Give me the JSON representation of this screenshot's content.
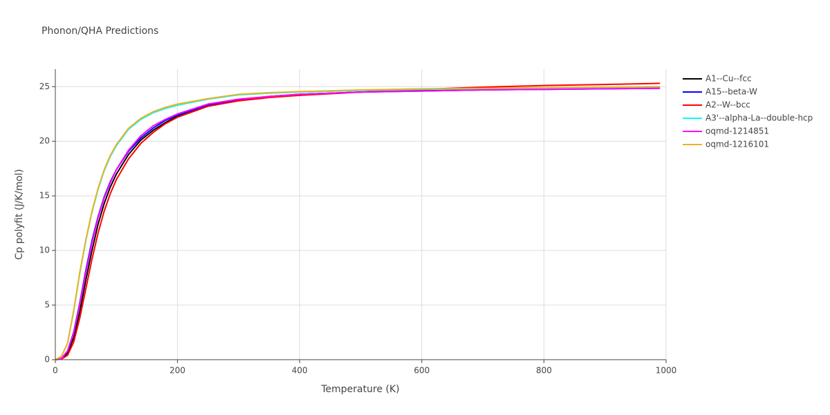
{
  "chart_data": {
    "type": "line",
    "title": "Phonon/QHA Predictions",
    "x_label": "Temperature (K)",
    "y_label": "Cp polyfit (J/K/mol)",
    "xlim": [
      0,
      1000
    ],
    "ylim": [
      0,
      26.6
    ],
    "xticks": [
      0,
      200,
      400,
      600,
      800,
      1000
    ],
    "yticks": [
      0,
      5,
      10,
      15,
      20,
      25
    ],
    "grid": true,
    "legend": "right",
    "x": [
      0,
      10,
      20,
      30,
      40,
      50,
      60,
      70,
      80,
      90,
      100,
      120,
      140,
      160,
      180,
      200,
      250,
      300,
      350,
      400,
      500,
      600,
      700,
      800,
      900,
      990
    ],
    "series": [
      {
        "name": "A1--Cu--fcc",
        "color": "#000000",
        "values": [
          0,
          0.08,
          0.6,
          2.0,
          4.4,
          7.3,
          10.0,
          12.4,
          14.3,
          15.8,
          17.0,
          18.8,
          20.1,
          21.0,
          21.7,
          22.3,
          23.3,
          23.8,
          24.1,
          24.3,
          24.5,
          24.65,
          24.75,
          24.8,
          24.85,
          24.9
        ]
      },
      {
        "name": "A15--beta-W",
        "color": "#0000ff",
        "values": [
          0,
          0.1,
          0.8,
          2.5,
          5.2,
          8.2,
          10.9,
          13.1,
          14.9,
          16.3,
          17.4,
          19.1,
          20.3,
          21.2,
          21.9,
          22.4,
          23.3,
          23.8,
          24.1,
          24.3,
          24.5,
          24.6,
          24.7,
          24.75,
          24.8,
          24.85
        ]
      },
      {
        "name": "A2--W--bcc",
        "color": "#ff0000",
        "values": [
          0,
          0.05,
          0.4,
          1.6,
          3.8,
          6.5,
          9.2,
          11.6,
          13.6,
          15.2,
          16.5,
          18.4,
          19.8,
          20.8,
          21.6,
          22.2,
          23.2,
          23.7,
          24.0,
          24.2,
          24.5,
          24.75,
          24.95,
          25.1,
          25.2,
          25.3
        ]
      },
      {
        "name": "A3'--alpha-La--double-hcp",
        "color": "#00ffff",
        "values": [
          0,
          0.3,
          1.5,
          4.4,
          7.9,
          10.9,
          13.5,
          15.6,
          17.3,
          18.6,
          19.6,
          21.1,
          22.0,
          22.6,
          23.0,
          23.3,
          23.85,
          24.25,
          24.4,
          24.5,
          24.65,
          24.75,
          24.8,
          24.85,
          24.9,
          24.9
        ]
      },
      {
        "name": "oqmd-1214851",
        "color": "#ff00ff",
        "values": [
          0,
          0.1,
          0.8,
          2.4,
          5.1,
          8.0,
          10.7,
          13.0,
          14.8,
          16.2,
          17.4,
          19.2,
          20.5,
          21.4,
          22.0,
          22.5,
          23.4,
          23.85,
          24.1,
          24.3,
          24.5,
          24.6,
          24.7,
          24.75,
          24.8,
          24.85
        ]
      },
      {
        "name": "oqmd-1216101",
        "color": "#f0b020",
        "values": [
          0,
          0.3,
          1.5,
          4.5,
          8.0,
          11.0,
          13.6,
          15.7,
          17.4,
          18.7,
          19.7,
          21.2,
          22.1,
          22.7,
          23.1,
          23.4,
          23.9,
          24.3,
          24.45,
          24.55,
          24.7,
          24.8,
          24.85,
          24.9,
          24.95,
          25.0
        ]
      }
    ]
  }
}
